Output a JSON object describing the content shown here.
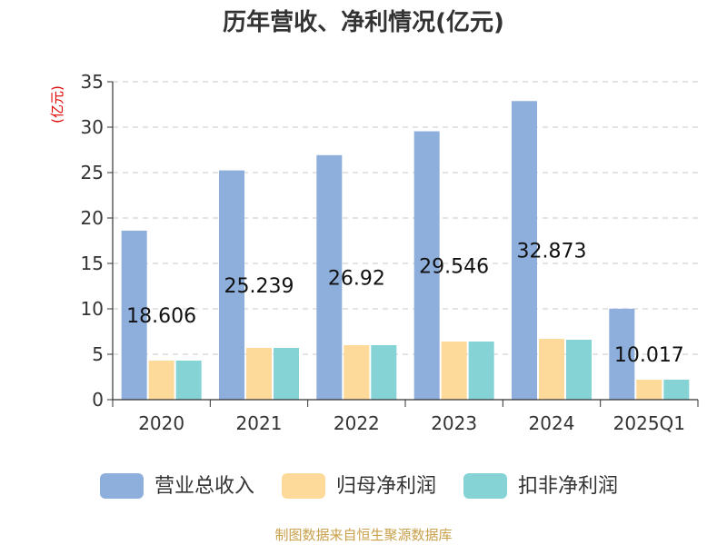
{
  "chart_data": {
    "type": "bar",
    "title": "历年营收、净利情况(亿元)",
    "ylabel": "(亿元)",
    "categories": [
      "2020",
      "2021",
      "2022",
      "2023",
      "2024",
      "2025Q1"
    ],
    "ylim": [
      0,
      35
    ],
    "yticks": [
      "0",
      "5",
      "10",
      "15",
      "20",
      "25",
      "30",
      "35"
    ],
    "grid": true,
    "legend_position": "bottom",
    "series": [
      {
        "name": "营业总收入",
        "color": "#8eaedb",
        "values": [
          18.606,
          25.239,
          26.92,
          29.546,
          32.873,
          10.017
        ],
        "labels": [
          "18.606",
          "25.239",
          "26.92",
          "29.546",
          "32.873",
          "10.017"
        ]
      },
      {
        "name": "归母净利润",
        "color": "#fdd99a",
        "values": [
          4.3,
          5.7,
          6.0,
          6.4,
          6.7,
          2.2
        ]
      },
      {
        "name": "扣非净利润",
        "color": "#86d3d6",
        "values": [
          4.3,
          5.7,
          6.0,
          6.4,
          6.6,
          2.2
        ]
      }
    ]
  },
  "source": "制图数据来自恒生聚源数据库"
}
